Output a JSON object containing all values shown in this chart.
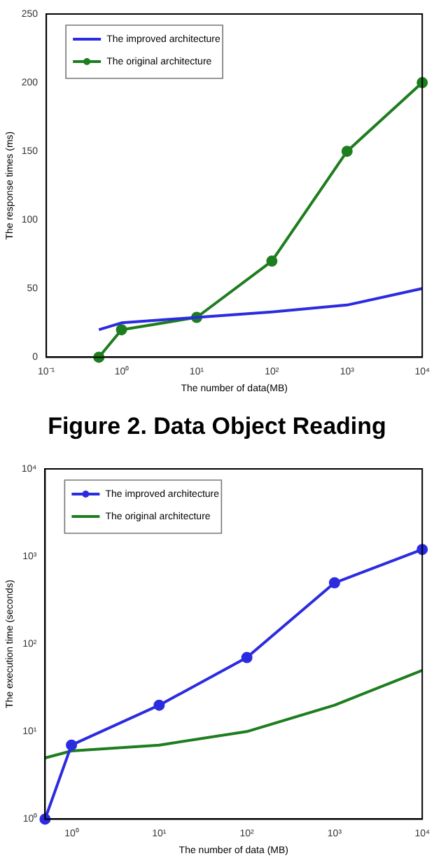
{
  "chart_data": [
    {
      "type": "line",
      "xlabel": "The number of data(MB)",
      "ylabel": "The response times (ms)",
      "log": "x",
      "legend": "top left",
      "xlim": [
        0.1,
        10000
      ],
      "ylim": [
        0,
        250
      ],
      "xticks": [
        {
          "value": 0.1,
          "label": "10⁻¹"
        },
        {
          "value": 1,
          "label": "10⁰"
        },
        {
          "value": 10,
          "label": "10¹"
        },
        {
          "value": 100,
          "label": "10²"
        },
        {
          "value": 1000,
          "label": "10³"
        },
        {
          "value": 10000,
          "label": "10⁴"
        }
      ],
      "yticks": [
        0,
        50,
        100,
        150,
        200,
        250
      ],
      "x": [
        0.5,
        1,
        10,
        100,
        1000,
        10000
      ],
      "series": [
        {
          "name": "The improved architecture",
          "color": "#2b2be0",
          "marker": "none",
          "values": [
            20,
            25,
            29,
            33,
            38,
            50
          ]
        },
        {
          "name": "The original architecture",
          "color": "#1e7d1e",
          "marker": "circle",
          "values": [
            0,
            20,
            29,
            70,
            150,
            200
          ]
        }
      ],
      "annotations": [
        "Figure 2. Data Object Reading"
      ]
    },
    {
      "type": "line",
      "xlabel": "The number of data (MB)",
      "ylabel": "The execution time (seconds)",
      "log": "xy",
      "legend": "top left",
      "xlim": [
        0.5,
        10000
      ],
      "ylim": [
        1,
        10000
      ],
      "xticks": [
        {
          "value": 1,
          "label": "10⁰"
        },
        {
          "value": 10,
          "label": "10¹"
        },
        {
          "value": 100,
          "label": "10²"
        },
        {
          "value": 1000,
          "label": "10³"
        },
        {
          "value": 10000,
          "label": "10⁴"
        }
      ],
      "yticks": [
        {
          "value": 1,
          "label": "10⁰"
        },
        {
          "value": 10,
          "label": "10¹"
        },
        {
          "value": 100,
          "label": "10²"
        },
        {
          "value": 1000,
          "label": "10³"
        },
        {
          "value": 10000,
          "label": "10⁴"
        }
      ],
      "x": [
        0.5,
        1,
        10,
        100,
        1000,
        10000
      ],
      "series": [
        {
          "name": "The improved architecture",
          "color": "#2b2be0",
          "marker": "circle",
          "values": [
            1,
            7,
            20,
            70,
            500,
            1200
          ]
        },
        {
          "name": "The original architecture",
          "color": "#1e7d1e",
          "marker": "none",
          "values": [
            5,
            6,
            7,
            10,
            20,
            50
          ]
        }
      ]
    }
  ]
}
